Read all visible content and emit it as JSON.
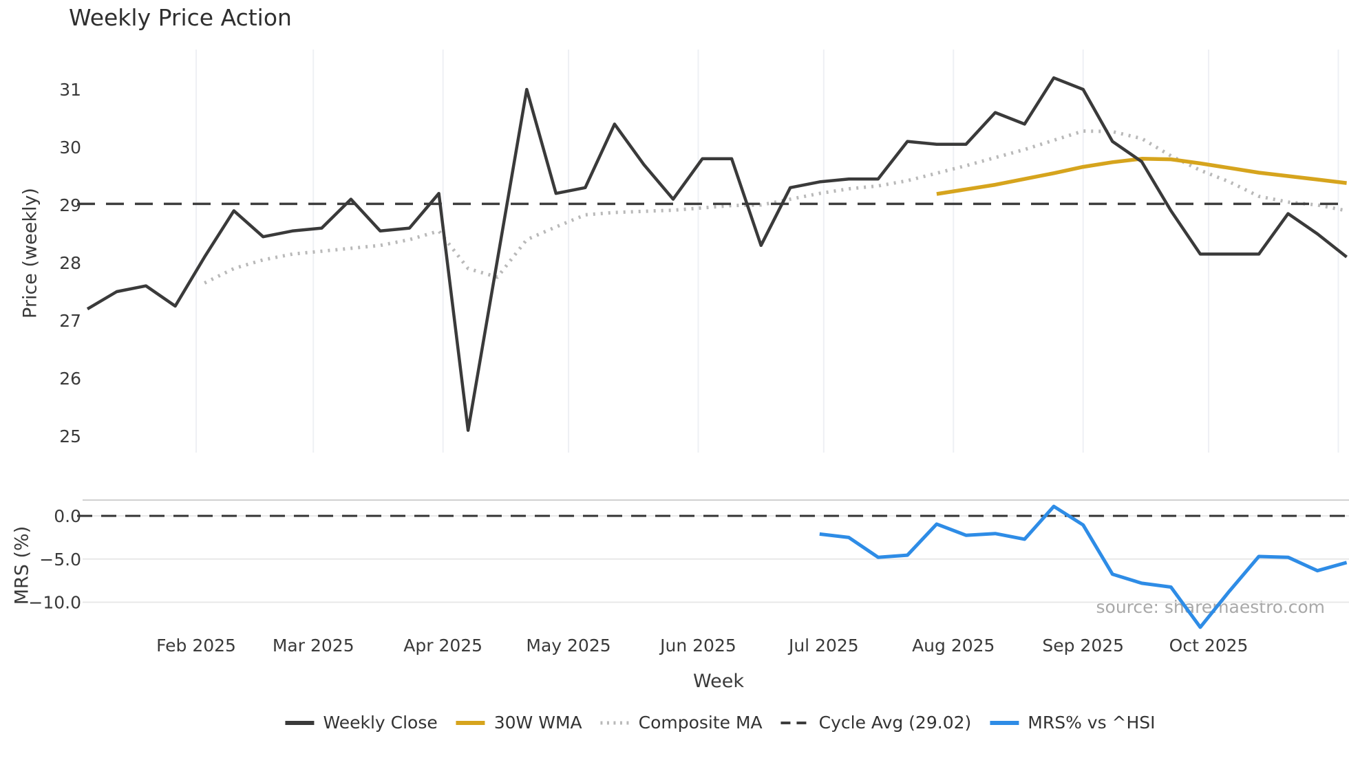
{
  "title": "Weekly Price Action",
  "source_note": "source: sharemaestro.com",
  "legend": [
    {
      "label": "Weekly Close",
      "style": "solid",
      "color": "#3a3a3a"
    },
    {
      "label": "30W WMA",
      "style": "solid",
      "color": "#d6a41d"
    },
    {
      "label": "Composite MA",
      "style": "dotted",
      "color": "#b9b9b9"
    },
    {
      "label": "Cycle Avg (29.02)",
      "style": "dashed",
      "color": "#3d3d3d"
    },
    {
      "label": "MRS% vs ^HSI",
      "style": "solid",
      "color": "#2e8ce6"
    }
  ],
  "colors": {
    "weekly_close": "#3a3a3a",
    "wma_30w": "#d6a41d",
    "composite_ma": "#b9b9b9",
    "cycle_avg": "#3d3d3d",
    "mrs": "#2e8ce6",
    "vgrid": "#eef0f4",
    "hgrid": "#e8e8e8",
    "panel_top_line": "#d0d0d0",
    "tick_text": "#3a3a3a"
  },
  "chart_data": {
    "type": "line",
    "xlabel": "Week",
    "x_tick_labels": [
      "Feb 2025",
      "Mar 2025",
      "Apr 2025",
      "May 2025",
      "Jun 2025",
      "Jul 2025",
      "Aug 2025",
      "Sep 2025",
      "Oct 2025"
    ],
    "x_month_gridlines": [
      "2025-02-01",
      "2025-03-01",
      "2025-04-01",
      "2025-05-01",
      "2025-06-01",
      "2025-07-01",
      "2025-08-01",
      "2025-09-01",
      "2025-10-01",
      "2025-11-01"
    ],
    "x_weeks": [
      "2025-01-06",
      "2025-01-13",
      "2025-01-20",
      "2025-01-27",
      "2025-02-03",
      "2025-02-10",
      "2025-02-17",
      "2025-02-24",
      "2025-03-03",
      "2025-03-10",
      "2025-03-17",
      "2025-03-24",
      "2025-03-31",
      "2025-04-07",
      "2025-04-14",
      "2025-04-21",
      "2025-04-28",
      "2025-05-05",
      "2025-05-12",
      "2025-05-19",
      "2025-05-26",
      "2025-06-02",
      "2025-06-09",
      "2025-06-16",
      "2025-06-23",
      "2025-06-30",
      "2025-07-07",
      "2025-07-14",
      "2025-07-21",
      "2025-07-28",
      "2025-08-04",
      "2025-08-11",
      "2025-08-18",
      "2025-08-25",
      "2025-09-01",
      "2025-09-08",
      "2025-09-15",
      "2025-09-22",
      "2025-09-29",
      "2025-10-06",
      "2025-10-13",
      "2025-10-20",
      "2025-10-27",
      "2025-11-03"
    ],
    "panels": [
      {
        "name": "price",
        "ylabel": "Price (weekly)",
        "ylim": [
          24.6,
          31.8
        ],
        "yticks": [
          "31",
          "30",
          "29",
          "28",
          "27",
          "26",
          "25"
        ],
        "ytick_values": [
          31,
          30,
          29,
          28,
          27,
          26,
          25
        ],
        "series": [
          {
            "name": "Weekly Close",
            "style": "solid",
            "color": "#3a3a3a",
            "width": 4.5,
            "start_index": 0,
            "values": [
              27.2,
              27.5,
              27.6,
              27.25,
              28.1,
              28.9,
              28.45,
              28.55,
              28.6,
              29.1,
              28.55,
              28.6,
              29.2,
              25.1,
              28.05,
              31.0,
              29.2,
              29.3,
              30.4,
              29.7,
              29.1,
              29.8,
              29.8,
              28.3,
              29.3,
              29.4,
              29.45,
              29.45,
              30.1,
              30.05,
              30.05,
              30.6,
              30.4,
              31.2,
              31.0,
              30.1,
              29.75,
              28.9,
              28.15,
              28.15,
              28.15,
              28.85,
              28.5,
              28.1
            ]
          },
          {
            "name": "Composite MA",
            "style": "dotted",
            "color": "#b9b9b9",
            "width": 5,
            "start_index": 4,
            "values": [
              27.65,
              27.9,
              28.05,
              28.15,
              28.2,
              28.25,
              28.3,
              28.4,
              28.55,
              27.9,
              27.75,
              28.4,
              28.62,
              28.83,
              28.87,
              28.89,
              28.91,
              28.95,
              28.99,
              29.0,
              29.1,
              29.2,
              29.28,
              29.33,
              29.42,
              29.55,
              29.68,
              29.82,
              29.96,
              30.12,
              30.28,
              30.27,
              30.15,
              29.85,
              29.6,
              29.4,
              29.15,
              29.05,
              29.0,
              28.9
            ]
          },
          {
            "name": "30W WMA",
            "style": "solid",
            "color": "#d6a41d",
            "width": 5.5,
            "start_index": 29,
            "values": [
              29.19,
              29.27,
              29.35,
              29.45,
              29.55,
              29.66,
              29.74,
              29.8,
              29.79,
              29.72,
              29.64,
              29.56,
              29.5,
              29.44,
              29.38
            ]
          },
          {
            "name": "Cycle Avg (29.02)",
            "style": "dashed",
            "color": "#3d3d3d",
            "width": 3.5,
            "constant": 29.02
          }
        ]
      },
      {
        "name": "mrs",
        "ylabel": "MRS (%)",
        "ylim": [
          -13.8,
          1.9
        ],
        "yticks": [
          "0.0",
          "−5.0",
          "−10.0"
        ],
        "ytick_values": [
          0,
          -5,
          -10
        ],
        "series": [
          {
            "name": "MRS% vs ^HSI",
            "style": "solid",
            "color": "#2e8ce6",
            "width": 5,
            "start_index": 25,
            "values": [
              -2.1,
              -2.5,
              -4.8,
              -4.55,
              -0.95,
              -2.25,
              -2.05,
              -2.7,
              1.1,
              -1.05,
              -6.75,
              -7.8,
              -8.25,
              -12.9,
              -8.7,
              -4.7,
              -4.8,
              -6.35,
              -5.4
            ]
          },
          {
            "name": "Zero line",
            "style": "dashed",
            "color": "#333333",
            "width": 3,
            "constant": 0
          }
        ]
      }
    ]
  }
}
